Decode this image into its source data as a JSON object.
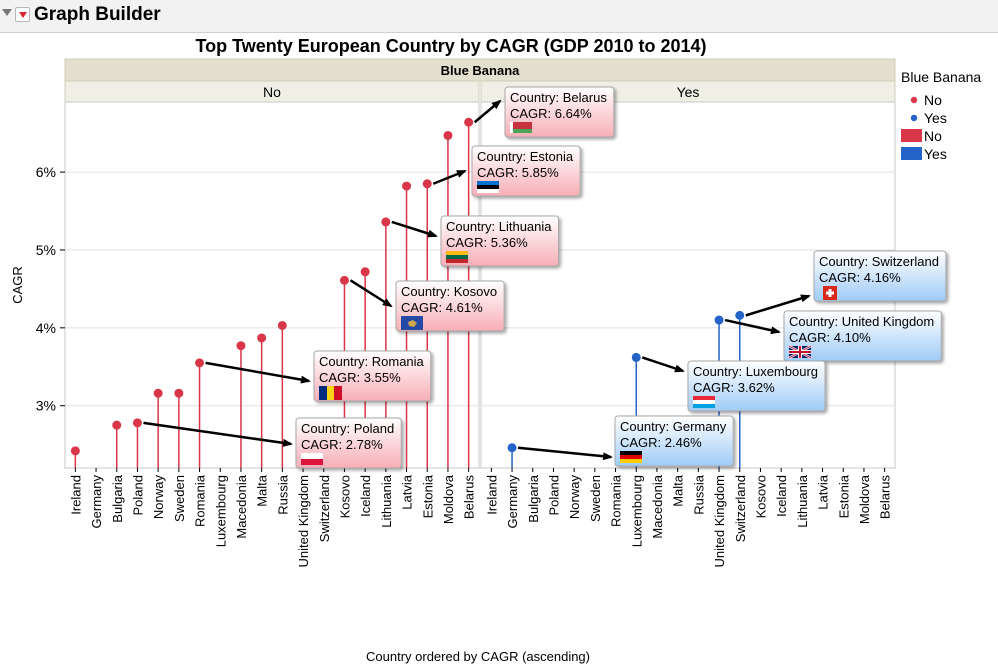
{
  "app": {
    "title": "Graph Builder"
  },
  "chart_data": {
    "type": "needle",
    "title": "Top Twenty European Country by CAGR (GDP 2010 to 2014)",
    "xlabel": "Country ordered by CAGR (ascending)",
    "ylabel": "CAGR",
    "group_title": "Blue Banana",
    "ylim": [
      2.2,
      6.9
    ],
    "yticks": [
      3,
      4,
      5,
      6
    ],
    "ytick_labels": [
      "3%",
      "4%",
      "5%",
      "6%"
    ],
    "panels": [
      {
        "label": "No",
        "color": "#d9364a",
        "countries": [
          "Ireland",
          "Germany",
          "Bulgaria",
          "Poland",
          "Norway",
          "Sweden",
          "Romania",
          "Luxembourg",
          "Macedonia",
          "Malta",
          "Russia",
          "United Kingdom",
          "Switzerland",
          "Kosovo",
          "Iceland",
          "Lithuania",
          "Latvia",
          "Estonia",
          "Moldova",
          "Belarus"
        ],
        "values": [
          2.42,
          null,
          2.75,
          2.78,
          3.16,
          3.16,
          3.55,
          null,
          3.77,
          3.87,
          4.03,
          null,
          null,
          4.61,
          4.72,
          5.36,
          5.82,
          5.85,
          6.47,
          6.64
        ]
      },
      {
        "label": "Yes",
        "color": "#2463c8",
        "countries": [
          "Ireland",
          "Germany",
          "Bulgaria",
          "Poland",
          "Norway",
          "Sweden",
          "Romania",
          "Luxembourg",
          "Macedonia",
          "Malta",
          "Russia",
          "United Kingdom",
          "Switzerland",
          "Kosovo",
          "Iceland",
          "Lithuania",
          "Latvia",
          "Estonia",
          "Moldova",
          "Belarus"
        ],
        "values": [
          null,
          2.46,
          null,
          null,
          null,
          null,
          null,
          3.62,
          null,
          null,
          null,
          4.1,
          4.16,
          null,
          null,
          null,
          null,
          null,
          null,
          null
        ]
      }
    ],
    "legend": {
      "title": "Blue Banana",
      "entries": [
        {
          "label": "No",
          "color": "#d9364a",
          "kind": "point"
        },
        {
          "label": "Yes",
          "color": "#2463c8",
          "kind": "point"
        },
        {
          "label": "No",
          "color": "#d9364a",
          "kind": "bar"
        },
        {
          "label": "Yes",
          "color": "#2463c8",
          "kind": "bar"
        }
      ]
    },
    "annotations": [
      {
        "panel": 0,
        "country": "Belarus",
        "value": 6.64,
        "line1": "Country: Belarus",
        "line2": "CAGR: 6.64%",
        "flag": "belarus-flag"
      },
      {
        "panel": 0,
        "country": "Estonia",
        "value": 5.85,
        "line1": "Country: Estonia",
        "line2": "CAGR: 5.85%",
        "flag": "estonia-flag"
      },
      {
        "panel": 0,
        "country": "Lithuania",
        "value": 5.36,
        "line1": "Country: Lithuania",
        "line2": "CAGR: 5.36%",
        "flag": "lithuania-flag"
      },
      {
        "panel": 0,
        "country": "Kosovo",
        "value": 4.61,
        "line1": "Country: Kosovo",
        "line2": "CAGR: 4.61%",
        "flag": "kosovo-flag"
      },
      {
        "panel": 0,
        "country": "Romania",
        "value": 3.55,
        "line1": "Country: Romania",
        "line2": "CAGR: 3.55%",
        "flag": "romania-flag"
      },
      {
        "panel": 0,
        "country": "Poland",
        "value": 2.78,
        "line1": "Country: Poland",
        "line2": "CAGR: 2.78%",
        "flag": "poland-flag"
      },
      {
        "panel": 1,
        "country": "Switzerland",
        "value": 4.16,
        "line1": "Country: Switzerland",
        "line2": "CAGR: 4.16%",
        "flag": "switzerland-flag"
      },
      {
        "panel": 1,
        "country": "United Kingdom",
        "value": 4.1,
        "line1": "Country: United Kingdom",
        "line2": "CAGR: 4.10%",
        "flag": "united-kingdom-flag"
      },
      {
        "panel": 1,
        "country": "Luxembourg",
        "value": 3.62,
        "line1": "Country: Luxembourg",
        "line2": "CAGR: 3.62%",
        "flag": "luxembourg-flag"
      },
      {
        "panel": 1,
        "country": "Germany",
        "value": 2.46,
        "line1": "Country: Germany",
        "line2": "CAGR: 2.46%",
        "flag": "germany-flag"
      }
    ]
  }
}
